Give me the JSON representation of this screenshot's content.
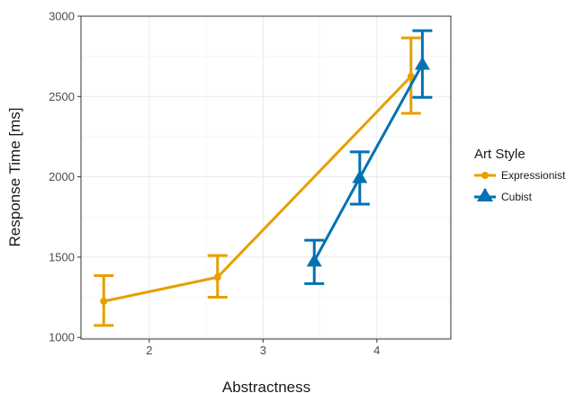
{
  "chart_data": {
    "type": "line",
    "xlabel": "Abstractness",
    "ylabel": "Response Time [ms]",
    "xlim": [
      1.4,
      4.65
    ],
    "ylim": [
      990,
      3000
    ],
    "x_ticks": [
      2,
      3,
      4
    ],
    "y_ticks": [
      1000,
      1500,
      2000,
      2500,
      3000
    ],
    "x_tick_labels": [
      "2",
      "3",
      "4"
    ],
    "y_tick_labels": [
      "1000",
      "1500",
      "2000",
      "2500",
      "3000"
    ],
    "grid": true,
    "legend": {
      "title": "Art Style",
      "position": "right"
    },
    "series": [
      {
        "name": "Expressionist",
        "color": "#E69F00",
        "marker": "circle",
        "points": [
          {
            "x": 1.6,
            "y": 1225,
            "ymin": 1075,
            "ymax": 1385
          },
          {
            "x": 2.6,
            "y": 1375,
            "ymin": 1250,
            "ymax": 1510
          },
          {
            "x": 4.3,
            "y": 2625,
            "ymin": 2395,
            "ymax": 2865
          }
        ]
      },
      {
        "name": "Cubist",
        "color": "#0072B2",
        "marker": "triangle",
        "points": [
          {
            "x": 3.45,
            "y": 1475,
            "ymin": 1335,
            "ymax": 1605
          },
          {
            "x": 3.85,
            "y": 1995,
            "ymin": 1830,
            "ymax": 2155
          },
          {
            "x": 4.4,
            "y": 2700,
            "ymin": 2495,
            "ymax": 2910
          }
        ]
      }
    ]
  }
}
